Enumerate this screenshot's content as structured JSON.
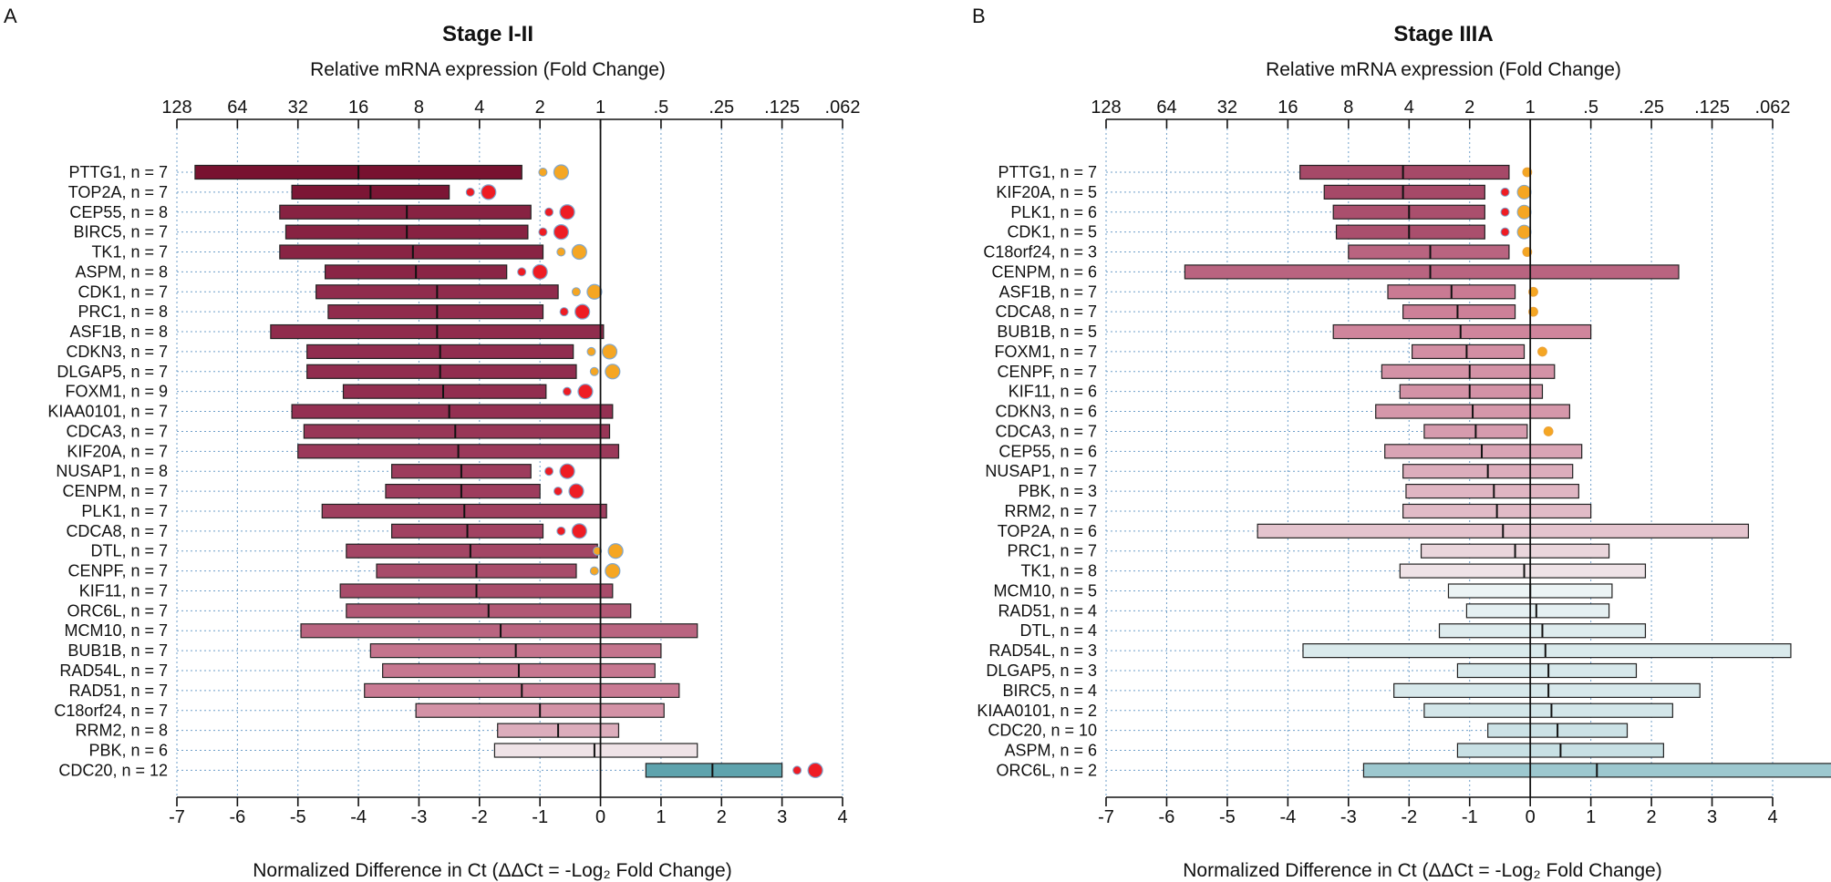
{
  "chart_data": [
    {
      "type": "bar",
      "subtype": "floating-range-with-median",
      "panel": "A",
      "title": "Stage I-II",
      "top_axis_label": "Relative mRNA expression (Fold Change)",
      "top_ticks": [
        {
          "v": -7,
          "label": "128"
        },
        {
          "v": -6,
          "label": "64"
        },
        {
          "v": -5,
          "label": "32"
        },
        {
          "v": -4,
          "label": "16"
        },
        {
          "v": -3,
          "label": "8"
        },
        {
          "v": -2,
          "label": "4"
        },
        {
          "v": -1,
          "label": "2"
        },
        {
          "v": 0,
          "label": "1"
        },
        {
          "v": 1,
          "label": ".5"
        },
        {
          "v": 2,
          "label": ".25"
        },
        {
          "v": 3,
          "label": ".125"
        },
        {
          "v": 4,
          "label": ".062"
        }
      ],
      "xlabel": "Normalized Difference in Ct (ΔΔCt = -Log₂ Fold Change)",
      "xlim": [
        -7,
        4
      ],
      "xticks": [
        "-7",
        "-6",
        "-5",
        "-4",
        "-3",
        "-2",
        "-1",
        "0",
        "1",
        "2",
        "3",
        "4"
      ],
      "rows": [
        {
          "label": "PTTG1, n =  7",
          "min": -6.7,
          "max": -1.3,
          "median": -4.0,
          "sig": "orange",
          "sig_at": -0.65
        },
        {
          "label": "TOP2A, n =  7",
          "min": -5.1,
          "max": -2.5,
          "median": -3.8,
          "sig": "red",
          "sig_at": -1.85
        },
        {
          "label": "CEP55, n =  8",
          "min": -5.3,
          "max": -1.15,
          "median": -3.2,
          "sig": "red",
          "sig_at": -0.55
        },
        {
          "label": "BIRC5, n =  7",
          "min": -5.2,
          "max": -1.2,
          "median": -3.2,
          "sig": "red",
          "sig_at": -0.65
        },
        {
          "label": "TK1, n =  7",
          "min": -5.3,
          "max": -0.95,
          "median": -3.1,
          "sig": "orange",
          "sig_at": -0.35
        },
        {
          "label": "ASPM, n =  8",
          "min": -4.55,
          "max": -1.55,
          "median": -3.05,
          "sig": "red",
          "sig_at": -1.0
        },
        {
          "label": "CDK1, n =  7",
          "min": -4.7,
          "max": -0.7,
          "median": -2.7,
          "sig": "orange",
          "sig_at": -0.1
        },
        {
          "label": "PRC1, n =  8",
          "min": -4.5,
          "max": -0.95,
          "median": -2.7,
          "sig": "red",
          "sig_at": -0.3
        },
        {
          "label": "ASF1B, n =  8",
          "min": -5.45,
          "max": 0.05,
          "median": -2.7,
          "sig": "none"
        },
        {
          "label": "CDKN3, n =  7",
          "min": -4.85,
          "max": -0.45,
          "median": -2.65,
          "sig": "orange",
          "sig_at": 0.15
        },
        {
          "label": "DLGAP5, n =  7",
          "min": -4.85,
          "max": -0.4,
          "median": -2.65,
          "sig": "orange",
          "sig_at": 0.2
        },
        {
          "label": "FOXM1, n =  9",
          "min": -4.25,
          "max": -0.9,
          "median": -2.6,
          "sig": "red",
          "sig_at": -0.25
        },
        {
          "label": "KIAA0101, n =  7",
          "min": -5.1,
          "max": 0.2,
          "median": -2.5,
          "sig": "none"
        },
        {
          "label": "CDCA3, n =  7",
          "min": -4.9,
          "max": 0.15,
          "median": -2.4,
          "sig": "none"
        },
        {
          "label": "KIF20A, n =  7",
          "min": -5.0,
          "max": 0.3,
          "median": -2.35,
          "sig": "none"
        },
        {
          "label": "NUSAP1, n =  8",
          "min": -3.45,
          "max": -1.15,
          "median": -2.3,
          "sig": "red",
          "sig_at": -0.55
        },
        {
          "label": "CENPM, n =  7",
          "min": -3.55,
          "max": -1.0,
          "median": -2.3,
          "sig": "red",
          "sig_at": -0.4
        },
        {
          "label": "PLK1, n =  7",
          "min": -4.6,
          "max": 0.1,
          "median": -2.25,
          "sig": "none"
        },
        {
          "label": "CDCA8, n =  7",
          "min": -3.45,
          "max": -0.95,
          "median": -2.2,
          "sig": "red",
          "sig_at": -0.35
        },
        {
          "label": "DTL, n =  7",
          "min": -4.2,
          "max": -0.05,
          "median": -2.15,
          "sig": "orange",
          "sig_at": 0.25
        },
        {
          "label": "CENPF, n =  7",
          "min": -3.7,
          "max": -0.4,
          "median": -2.05,
          "sig": "orange",
          "sig_at": 0.2
        },
        {
          "label": "KIF11, n =  7",
          "min": -4.3,
          "max": 0.2,
          "median": -2.05,
          "sig": "none"
        },
        {
          "label": "ORC6L, n =  7",
          "min": -4.2,
          "max": 0.5,
          "median": -1.85,
          "sig": "none"
        },
        {
          "label": "MCM10, n =  7",
          "min": -4.95,
          "max": 1.6,
          "median": -1.65,
          "sig": "none"
        },
        {
          "label": "BUB1B, n =  7",
          "min": -3.8,
          "max": 1.0,
          "median": -1.4,
          "sig": "none"
        },
        {
          "label": "RAD54L, n =  7",
          "min": -3.6,
          "max": 0.9,
          "median": -1.35,
          "sig": "none"
        },
        {
          "label": "RAD51, n =  7",
          "min": -3.9,
          "max": 1.3,
          "median": -1.3,
          "sig": "none"
        },
        {
          "label": "C18orf24, n =  7",
          "min": -3.05,
          "max": 1.05,
          "median": -1.0,
          "sig": "none"
        },
        {
          "label": "RRM2, n =  8",
          "min": -1.7,
          "max": 0.3,
          "median": -0.7,
          "sig": "none"
        },
        {
          "label": "PBK, n =  6",
          "min": -1.75,
          "max": 1.6,
          "median": -0.1,
          "sig": "none"
        },
        {
          "label": "CDC20, n = 12",
          "min": 0.75,
          "max": 3.0,
          "median": 1.85,
          "sig": "red",
          "sig_at": 3.55
        }
      ]
    },
    {
      "type": "bar",
      "subtype": "floating-range-with-median",
      "panel": "B",
      "title": "Stage IIIA",
      "top_axis_label": "Relative mRNA expression (Fold Change)",
      "top_ticks": [
        {
          "v": -7,
          "label": "128"
        },
        {
          "v": -6,
          "label": "64"
        },
        {
          "v": -5,
          "label": "32"
        },
        {
          "v": -4,
          "label": "16"
        },
        {
          "v": -3,
          "label": "8"
        },
        {
          "v": -2,
          "label": "4"
        },
        {
          "v": -1,
          "label": "2"
        },
        {
          "v": 0,
          "label": "1"
        },
        {
          "v": 1,
          "label": ".5"
        },
        {
          "v": 2,
          "label": ".25"
        },
        {
          "v": 3,
          "label": ".125"
        },
        {
          "v": 4,
          "label": ".062"
        }
      ],
      "xlabel": "Normalized Difference in Ct (ΔΔCt = -Log₂ Fold Change)",
      "xlim": [
        -7,
        4
      ],
      "xticks": [
        "-7",
        "-6",
        "-5",
        "-4",
        "-3",
        "-2",
        "-1",
        "0",
        "1",
        "2",
        "3",
        "4"
      ],
      "rows": [
        {
          "label": "PTTG1, n =  7",
          "min": -3.8,
          "max": -0.35,
          "median": -2.1,
          "sig": "orange",
          "sig_at": -0.05
        },
        {
          "label": "KIF20A, n =  5",
          "min": -3.4,
          "max": -0.75,
          "median": -2.1,
          "sig": "orange",
          "sig_at": -0.1
        },
        {
          "label": "PLK1, n =  6",
          "min": -3.25,
          "max": -0.75,
          "median": -2.0,
          "sig": "orange",
          "sig_at": -0.1
        },
        {
          "label": "CDK1, n =  5",
          "min": -3.2,
          "max": -0.75,
          "median": -2.0,
          "sig": "orange",
          "sig_at": -0.1
        },
        {
          "label": "C18orf24, n =  3",
          "min": -3.0,
          "max": -0.35,
          "median": -1.65,
          "sig": "orange",
          "sig_at": -0.05
        },
        {
          "label": "CENPM, n =  6",
          "min": -5.7,
          "max": 2.45,
          "median": -1.65,
          "sig": "none"
        },
        {
          "label": "ASF1B, n =  7",
          "min": -2.35,
          "max": -0.25,
          "median": -1.3,
          "sig": "orange",
          "sig_at": 0.05
        },
        {
          "label": "CDCA8, n =  7",
          "min": -2.1,
          "max": -0.25,
          "median": -1.2,
          "sig": "orange",
          "sig_at": 0.05
        },
        {
          "label": "BUB1B, n =  5",
          "min": -3.25,
          "max": 1.0,
          "median": -1.15,
          "sig": "none"
        },
        {
          "label": "FOXM1, n =  7",
          "min": -1.95,
          "max": -0.1,
          "median": -1.05,
          "sig": "orange",
          "sig_at": 0.2
        },
        {
          "label": "CENPF, n =  7",
          "min": -2.45,
          "max": 0.4,
          "median": -1.0,
          "sig": "none"
        },
        {
          "label": "KIF11, n =  6",
          "min": -2.15,
          "max": 0.2,
          "median": -1.0,
          "sig": "none"
        },
        {
          "label": "CDKN3, n =  6",
          "min": -2.55,
          "max": 0.65,
          "median": -0.95,
          "sig": "none"
        },
        {
          "label": "CDCA3, n =  7",
          "min": -1.75,
          "max": -0.05,
          "median": -0.9,
          "sig": "orange",
          "sig_at": 0.3
        },
        {
          "label": "CEP55, n =  6",
          "min": -2.4,
          "max": 0.85,
          "median": -0.8,
          "sig": "none"
        },
        {
          "label": "NUSAP1, n =  7",
          "min": -2.1,
          "max": 0.7,
          "median": -0.7,
          "sig": "none"
        },
        {
          "label": "PBK, n =  3",
          "min": -2.05,
          "max": 0.8,
          "median": -0.6,
          "sig": "none"
        },
        {
          "label": "RRM2, n =  7",
          "min": -2.1,
          "max": 1.0,
          "median": -0.55,
          "sig": "none"
        },
        {
          "label": "TOP2A, n =  6",
          "min": -4.5,
          "max": 3.6,
          "median": -0.45,
          "sig": "none"
        },
        {
          "label": "PRC1, n =  7",
          "min": -1.8,
          "max": 1.3,
          "median": -0.25,
          "sig": "none"
        },
        {
          "label": "TK1, n =  8",
          "min": -2.15,
          "max": 1.9,
          "median": -0.1,
          "sig": "none"
        },
        {
          "label": "MCM10, n =  5",
          "min": -1.35,
          "max": 1.35,
          "median": 0.0,
          "sig": "none"
        },
        {
          "label": "RAD51, n =  4",
          "min": -1.05,
          "max": 1.3,
          "median": 0.1,
          "sig": "none"
        },
        {
          "label": "DTL, n =  4",
          "min": -1.5,
          "max": 1.9,
          "median": 0.2,
          "sig": "none"
        },
        {
          "label": "RAD54L, n =  3",
          "min": -3.75,
          "max": 4.3,
          "median": 0.25,
          "sig": "none"
        },
        {
          "label": "DLGAP5, n =  3",
          "min": -1.2,
          "max": 1.75,
          "median": 0.3,
          "sig": "none"
        },
        {
          "label": "BIRC5, n =  4",
          "min": -2.25,
          "max": 2.8,
          "median": 0.3,
          "sig": "none"
        },
        {
          "label": "KIAA0101, n =  2",
          "min": -1.75,
          "max": 2.35,
          "median": 0.35,
          "sig": "none"
        },
        {
          "label": "CDC20, n = 10",
          "min": -0.7,
          "max": 1.6,
          "median": 0.45,
          "sig": "none"
        },
        {
          "label": "ASPM, n =  6",
          "min": -1.2,
          "max": 2.2,
          "median": 0.5,
          "sig": "none"
        },
        {
          "label": "ORC6L, n =  2",
          "min": -2.75,
          "max": 5.0,
          "median": 1.1,
          "sig": "none"
        }
      ]
    }
  ]
}
